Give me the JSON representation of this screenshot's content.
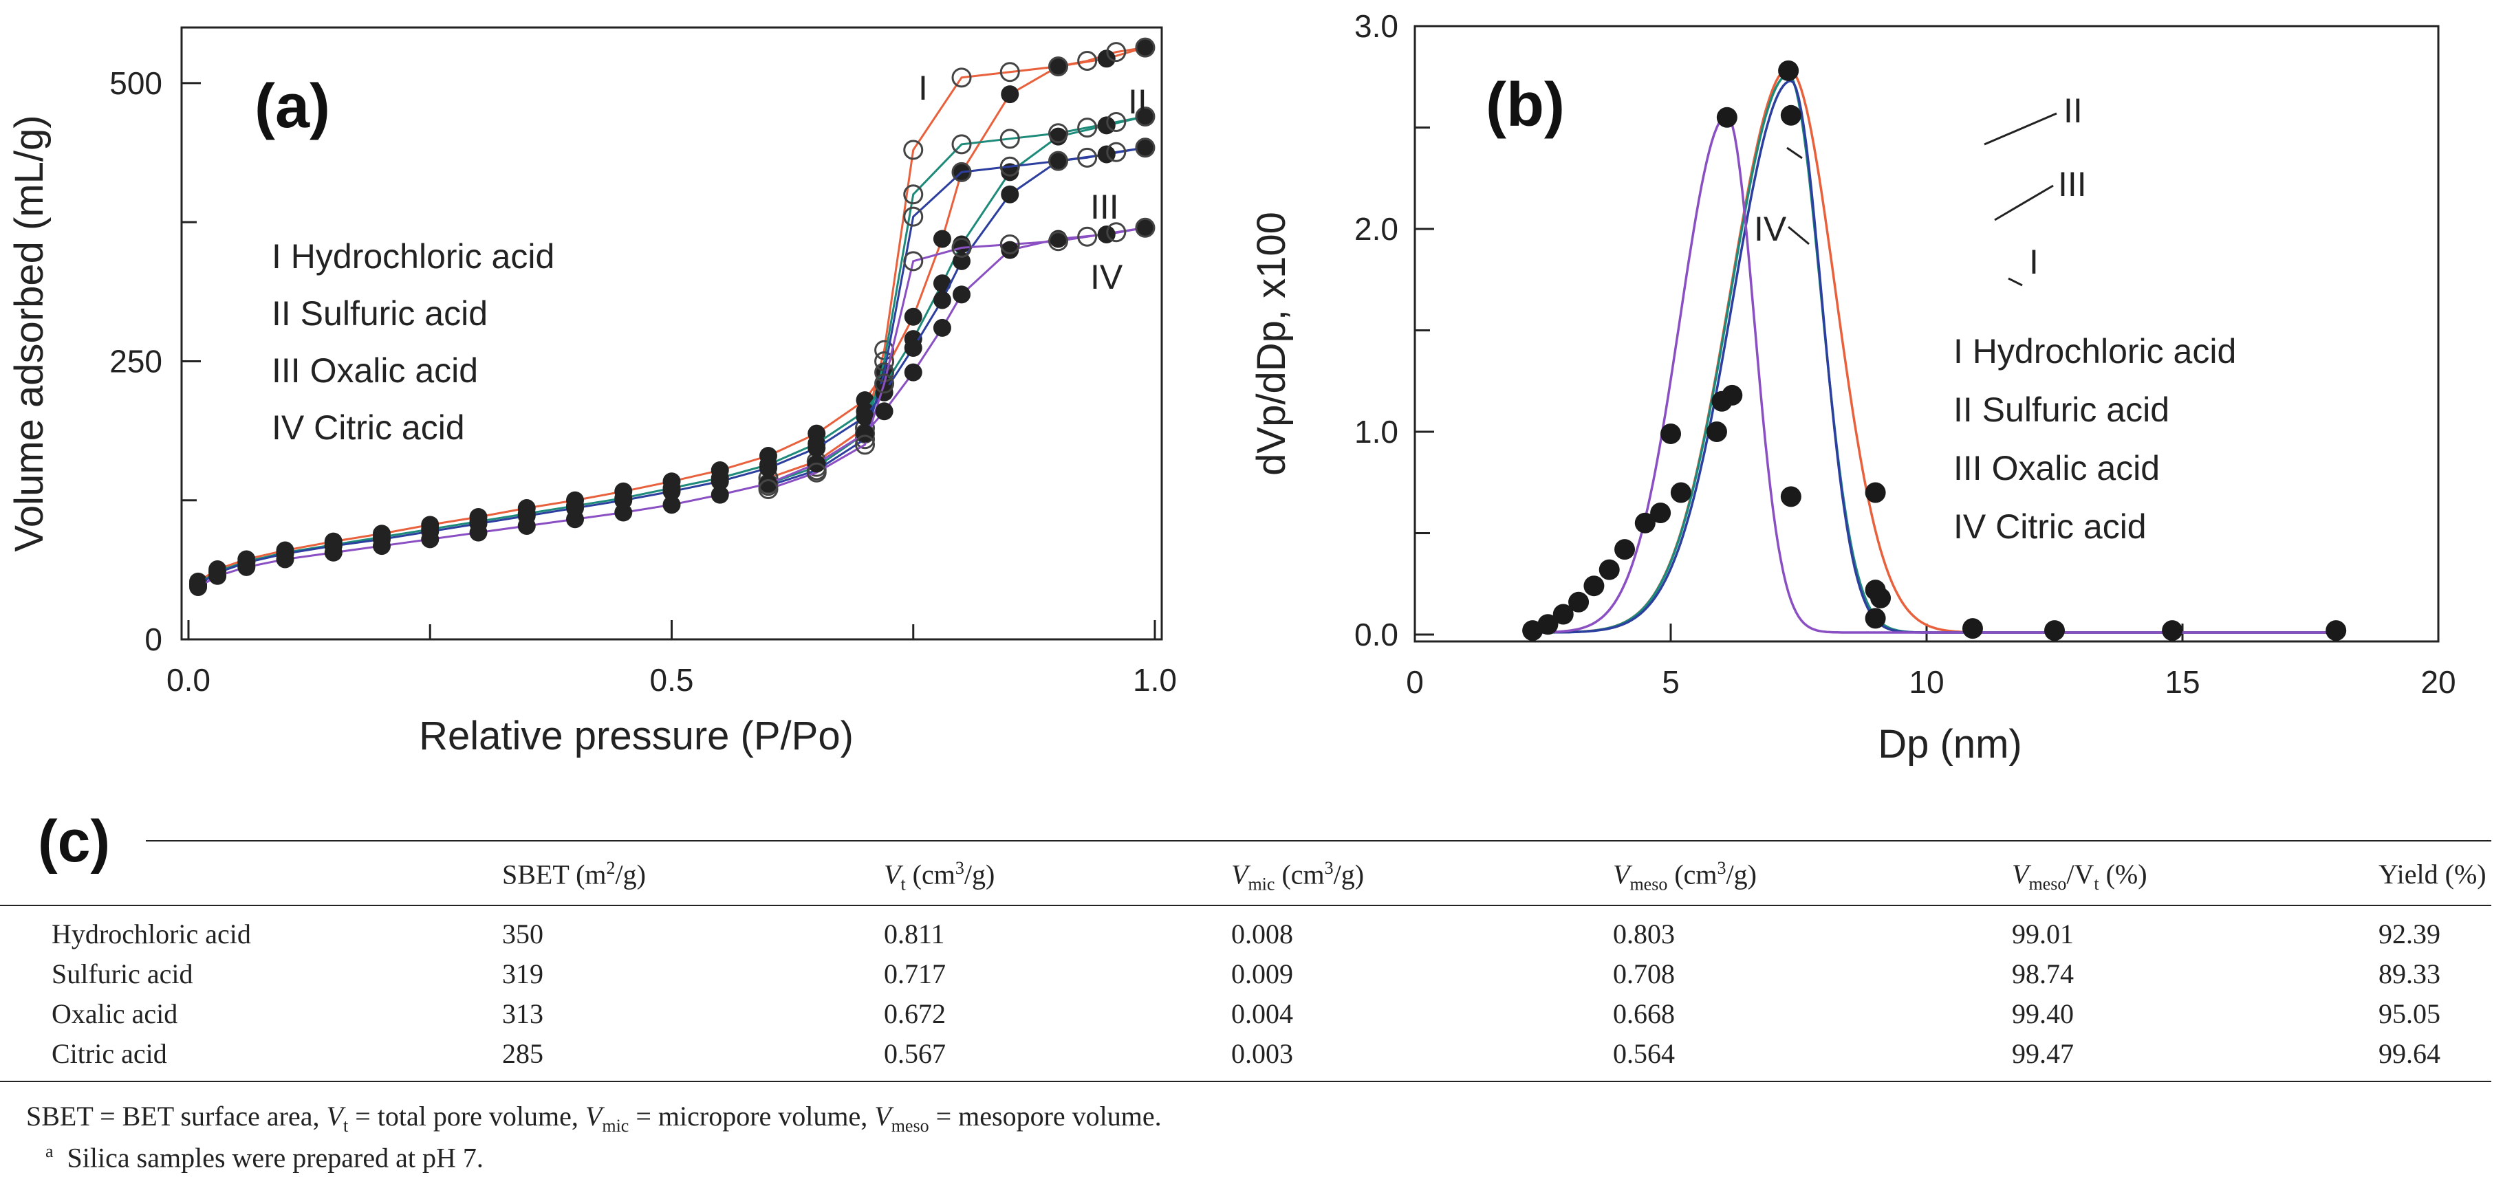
{
  "chart_data": [
    {
      "type": "line",
      "panel_label": "(a)",
      "xlabel": "Relative pressure (P/Po)",
      "ylabel": "Volume adsorbed (mL/g)",
      "xlim": [
        0.0,
        1.0
      ],
      "ylim": [
        0,
        550
      ],
      "xticks": [
        "0.0",
        "0.5",
        "1.0"
      ],
      "yticks": [
        "0",
        "250",
        "500"
      ],
      "legend": [
        "I  Hydrochloric acid",
        "II  Sulfuric acid",
        "III  Oxalic acid",
        "IV  Citric acid"
      ],
      "series": [
        {
          "name": "I",
          "color": "#e8603c",
          "x": [
            0.01,
            0.03,
            0.06,
            0.1,
            0.15,
            0.2,
            0.25,
            0.3,
            0.35,
            0.4,
            0.45,
            0.5,
            0.55,
            0.6,
            0.65,
            0.7,
            0.72,
            0.75,
            0.78,
            0.8,
            0.85,
            0.9,
            0.95,
            0.99
          ],
          "adsorption": [
            52,
            63,
            72,
            80,
            88,
            95,
            103,
            110,
            118,
            125,
            133,
            142,
            152,
            165,
            185,
            215,
            240,
            290,
            360,
            420,
            490,
            515,
            522,
            532
          ],
          "desorption": [
            145,
            160,
            190,
            260,
            440,
            505,
            510,
            515,
            520,
            528,
            532
          ]
        },
        {
          "name": "II",
          "color": "#1e8a7a",
          "x": [
            0.01,
            0.03,
            0.06,
            0.1,
            0.15,
            0.2,
            0.25,
            0.3,
            0.35,
            0.4,
            0.45,
            0.5,
            0.55,
            0.6,
            0.65,
            0.7,
            0.72,
            0.75,
            0.78,
            0.8,
            0.85,
            0.9,
            0.95,
            0.99
          ],
          "adsorption": [
            50,
            61,
            70,
            78,
            85,
            92,
            99,
            106,
            113,
            120,
            127,
            136,
            145,
            157,
            176,
            205,
            228,
            270,
            320,
            355,
            420,
            452,
            462,
            470
          ],
          "desorption": [
            140,
            155,
            185,
            250,
            400,
            445,
            450,
            455,
            460,
            465,
            470
          ]
        },
        {
          "name": "III",
          "color": "#2c3e9e",
          "x": [
            0.01,
            0.03,
            0.06,
            0.1,
            0.15,
            0.2,
            0.25,
            0.3,
            0.35,
            0.4,
            0.45,
            0.5,
            0.55,
            0.6,
            0.65,
            0.7,
            0.72,
            0.75,
            0.78,
            0.8,
            0.85,
            0.9,
            0.95,
            0.99
          ],
          "adsorption": [
            49,
            60,
            69,
            77,
            84,
            90,
            97,
            104,
            111,
            118,
            125,
            133,
            142,
            154,
            172,
            200,
            222,
            262,
            305,
            340,
            400,
            430,
            436,
            442
          ],
          "desorption": [
            138,
            152,
            180,
            240,
            380,
            420,
            425,
            430,
            433,
            438,
            442
          ]
        },
        {
          "name": "IV",
          "color": "#8a4fc2",
          "x": [
            0.01,
            0.03,
            0.06,
            0.1,
            0.15,
            0.2,
            0.25,
            0.3,
            0.35,
            0.4,
            0.45,
            0.5,
            0.55,
            0.6,
            0.65,
            0.7,
            0.72,
            0.75,
            0.78,
            0.8,
            0.85,
            0.9,
            0.95,
            0.99
          ],
          "adsorption": [
            47,
            57,
            65,
            72,
            78,
            84,
            90,
            96,
            102,
            108,
            114,
            121,
            130,
            140,
            158,
            185,
            205,
            240,
            280,
            310,
            350,
            360,
            364,
            370
          ],
          "desorption": [
            135,
            150,
            175,
            230,
            340,
            352,
            355,
            358,
            362,
            366,
            370
          ]
        }
      ],
      "annotations": [
        "I",
        "II",
        "III",
        "IV"
      ]
    },
    {
      "type": "line",
      "panel_label": "(b)",
      "xlabel": "Dp (nm)",
      "ylabel": "dVp/dDp, x100",
      "xlim": [
        0,
        20
      ],
      "ylim": [
        0.0,
        3.0
      ],
      "xticks": [
        "0",
        "5",
        "10",
        "15",
        "20"
      ],
      "yticks": [
        "0.0",
        "1.0",
        "2.0",
        "3.0"
      ],
      "legend": [
        "I  Hydrochloric acid",
        "II Sulfuric acid",
        "III  Oxalic acid",
        "IV  Citric acid"
      ],
      "series": [
        {
          "name": "I",
          "color": "#e8603c",
          "peak": 7.3,
          "height": 2.78,
          "widthL": 1.6,
          "widthR": 1.3
        },
        {
          "name": "II",
          "color": "#1e8a7a",
          "peak": 7.3,
          "height": 2.75,
          "widthL": 1.6,
          "widthR": 0.9
        },
        {
          "name": "III",
          "color": "#2c3e9e",
          "peak": 7.35,
          "height": 2.72,
          "widthL": 1.6,
          "widthR": 0.85
        },
        {
          "name": "IV",
          "color": "#8a4fc2",
          "peak": 6.1,
          "height": 2.55,
          "widthL": 1.3,
          "widthR": 0.75
        }
      ],
      "points": [
        [
          2.3,
          0.02
        ],
        [
          2.6,
          0.05
        ],
        [
          2.9,
          0.1
        ],
        [
          3.2,
          0.16
        ],
        [
          3.5,
          0.24
        ],
        [
          3.8,
          0.32
        ],
        [
          4.1,
          0.42
        ],
        [
          4.5,
          0.55
        ],
        [
          4.8,
          0.6
        ],
        [
          5.0,
          0.99
        ],
        [
          5.2,
          0.7
        ],
        [
          5.9,
          1.0
        ],
        [
          6.0,
          1.15
        ],
        [
          6.1,
          2.55
        ],
        [
          6.2,
          1.18
        ],
        [
          7.3,
          2.78
        ],
        [
          7.35,
          2.56
        ],
        [
          7.35,
          0.68
        ],
        [
          9.0,
          0.7
        ],
        [
          9.0,
          0.22
        ],
        [
          9.1,
          0.18
        ],
        [
          9.0,
          0.08
        ],
        [
          10.9,
          0.03
        ],
        [
          12.5,
          0.02
        ],
        [
          14.8,
          0.02
        ],
        [
          18.0,
          0.02
        ]
      ],
      "annotations": [
        "I",
        "II",
        "III",
        "IV"
      ]
    }
  ],
  "table": {
    "label": "(c)",
    "headers": [
      "",
      "SBET",
      "V",
      "V",
      "V",
      "V",
      "Yield (%)"
    ],
    "header_units": [
      "",
      "(m",
      "(cm",
      "(cm",
      "(cm",
      "/V",
      ""
    ],
    "header_subs": [
      "",
      "",
      "t",
      "mic",
      "meso",
      "meso",
      ""
    ],
    "rows": [
      [
        "Hydrochloric acid",
        "350",
        "0.811",
        "0.008",
        "0.803",
        "99.01",
        "92.39"
      ],
      [
        "Sulfuric acid",
        "319",
        "0.717",
        "0.009",
        "0.708",
        "98.74",
        "89.33"
      ],
      [
        "Oxalic acid",
        "313",
        "0.672",
        "0.004",
        "0.668",
        "99.40",
        "95.05"
      ],
      [
        "Citric acid",
        "285",
        "0.567",
        "0.003",
        "0.564",
        "99.47",
        "99.64"
      ]
    ],
    "footnote1": {
      "a": "SBET = BET surface area, ",
      "vt": "V",
      "vt_sub": "t",
      "b": " = total pore volume, ",
      "vmic": "V",
      "vmic_sub": "mic",
      "c": " = micropore volume, ",
      "vmeso": "V",
      "vmeso_sub": "meso",
      "d": " = mesopore volume."
    },
    "footnote2_mark": "a",
    "footnote2": "Silica samples were prepared at pH 7."
  }
}
